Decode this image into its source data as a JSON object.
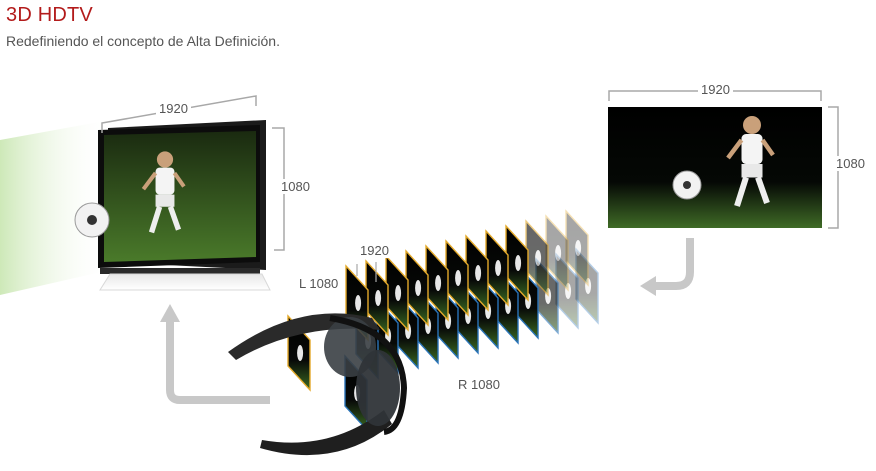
{
  "header": {
    "title": "3D HDTV",
    "subtitle": "Redefiniendo el concepto de Alta Definición."
  },
  "diagram": {
    "tv": {
      "width_label": "1920",
      "height_label": "1080"
    },
    "frames": {
      "width_label": "1920",
      "left_label": "L 1080",
      "right_label": "R 1080",
      "left_color": "#e3a92a",
      "right_color": "#2a73b8"
    },
    "source": {
      "width_label": "1920",
      "height_label": "1080"
    }
  },
  "colors": {
    "brand_red": "#b31b1b",
    "dim_line": "#a8a8a8",
    "arrow": "#c8c8c8"
  }
}
